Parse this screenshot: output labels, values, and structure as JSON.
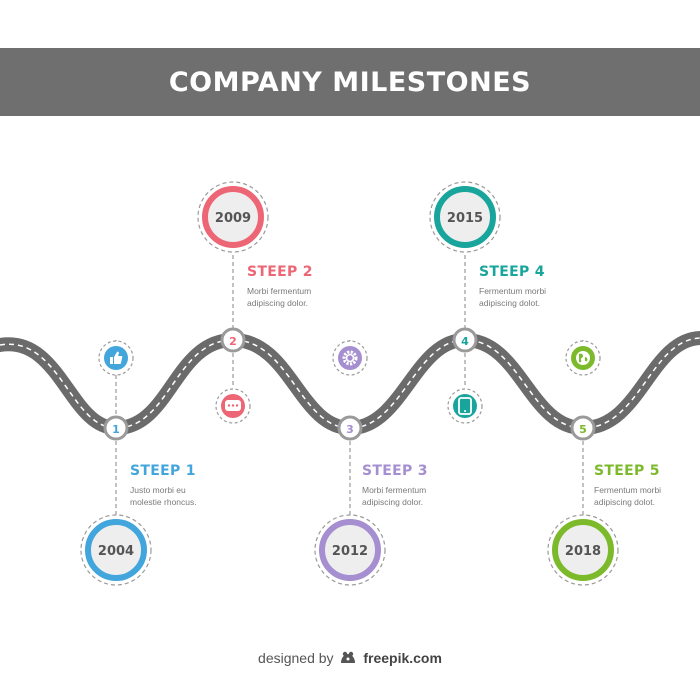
{
  "title": "COMPANY MILESTONES",
  "colors": {
    "banner": "#6f6f6f",
    "road": "#6b6b6b",
    "blue": "#42a5dc",
    "red": "#ec6675",
    "purple": "#a58fd0",
    "teal": "#1aa59c",
    "green": "#7cba2c"
  },
  "milestones": [
    {
      "number": "1",
      "year": "2004",
      "step": "STEEP 1",
      "text_1": "Justo morbi eu",
      "text_2": "molestie rhoncus.",
      "color": "#42a5dc",
      "icon": "thumbs-up-icon"
    },
    {
      "number": "2",
      "year": "2009",
      "step": "STEEP 2",
      "text_1": "Morbi fermentum",
      "text_2": "adipiscing dolor.",
      "color": "#ec6675",
      "icon": "chat-bubble-icon"
    },
    {
      "number": "3",
      "year": "2012",
      "step": "STEEP 3",
      "text_1": "Morbi fermentum",
      "text_2": "adipiscing dolor.",
      "color": "#a58fd0",
      "icon": "gear-icon"
    },
    {
      "number": "4",
      "year": "2015",
      "step": "STEEP 4",
      "text_1": "Fermentum morbi",
      "text_2": "adipiscing dolot.",
      "color": "#1aa59c",
      "icon": "tablet-icon"
    },
    {
      "number": "5",
      "year": "2018",
      "step": "STEEP 5",
      "text_1": "Fermentum morbi",
      "text_2": "adipiscing dolot.",
      "color": "#7cba2c",
      "icon": "globe-icon"
    }
  ],
  "footer": {
    "prefix": "designed by",
    "brand": "freepik.com",
    "logo_icon": "freepik-logo-icon"
  }
}
